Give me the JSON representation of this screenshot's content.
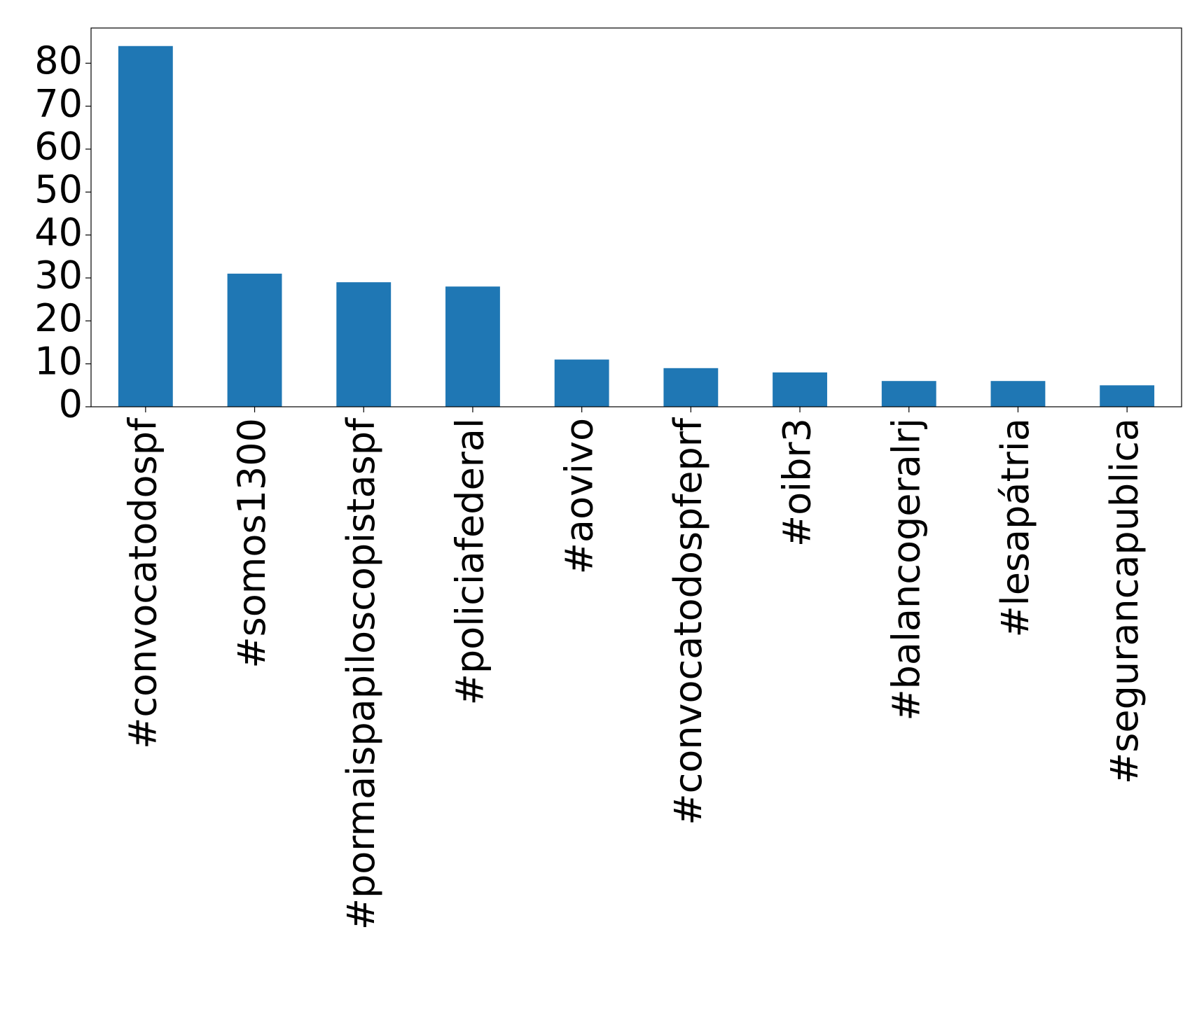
{
  "chart_data": {
    "type": "bar",
    "categories": [
      "#convocatodospf",
      "#somos1300",
      "#pormaispapiloscopistaspf",
      "#policiafederal",
      "#aovivo",
      "#convocatodospfeprf",
      "#oibr3",
      "#balancogeralrj",
      "#lesapátria",
      "#segurancapublica"
    ],
    "values": [
      84,
      31,
      29,
      28,
      11,
      9,
      8,
      6,
      6,
      5
    ],
    "color": "#1f77b4",
    "ylim": [
      0,
      88.2
    ],
    "yticks": [
      0,
      10,
      20,
      30,
      40,
      50,
      60,
      70,
      80
    ],
    "grid": false
  }
}
